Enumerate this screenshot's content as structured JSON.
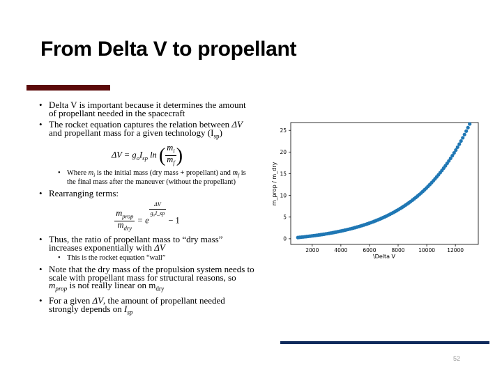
{
  "slide": {
    "title": "From Delta V to propellant",
    "page_number": "52"
  },
  "bullets": {
    "b1": "Delta V is important because it determines the amount of propellant needed in the spacecraft",
    "b2_a": "The rocket equation captures the relation between ",
    "b2_dv": "ΔV",
    "b2_b": " and propellant mass for a given technology (I",
    "b2_sub": "sp",
    "b2_c": ")",
    "eq1_lhs": "ΔV = g",
    "eq1_o": "o",
    "eq1_i": "I",
    "eq1_sp": "sp",
    "eq1_ln": " ln ",
    "eq1_mi": "m",
    "eq1_mi_sub": "i",
    "eq1_mf": "m",
    "eq1_mf_sub": "f",
    "sub1_a": "Where ",
    "sub1_mi": "m",
    "sub1_mi_sub": "i",
    "sub1_b": " is the initial mass (dry mass + propellant) and ",
    "sub1_mf": "m",
    "sub1_mf_sub": "f",
    "sub1_c": " is the final mass after the maneuver (without the propellant)",
    "b3": "Rearranging terms:",
    "eq2_num": "m",
    "eq2_num_sub": "prop",
    "eq2_den": "m",
    "eq2_den_sub": "dry",
    "eq2_eq": " = e",
    "eq2_exp_num": "ΔV",
    "eq2_exp_den": "g₀I_sp",
    "eq2_tail": " − 1",
    "b4_a": "Thus, the ratio of propellant mass to “dry mass” increases exponentially with ",
    "b4_dv": "ΔV",
    "sub2": "This is the rocket equation “wall”",
    "b5_a": "Note that the dry mass of the propulsion system needs to scale with propellant mass for structural reasons, so ",
    "b5_m": "m",
    "b5_m_sub": "prop",
    "b5_b": " is not really linear on m",
    "b5_sub": "dry",
    "b6_a": "For a given ",
    "b6_dv": "ΔV",
    "b6_b": ", the amount of propellant needed strongly depends on ",
    "b6_i": "I",
    "b6_sp": "sp"
  },
  "chart_data": {
    "type": "scatter",
    "xlabel": "\\Delta V",
    "ylabel": "m_prop / m_dry",
    "xlim": [
      500,
      13600
    ],
    "ylim": [
      -1.3,
      26.8
    ],
    "x_ticks": [
      2000,
      4000,
      6000,
      8000,
      10000,
      12000
    ],
    "y_ticks": [
      0,
      5,
      10,
      15,
      20,
      25
    ],
    "x_tick_labels": [
      "2000",
      "4000",
      "6000",
      "8000",
      "10000",
      "12000"
    ],
    "y_tick_labels": [
      "0",
      "5",
      "10",
      "15",
      "20",
      "25"
    ],
    "x_range": [
      1000,
      13000
    ],
    "n_points": 100,
    "model": "exp",
    "model_scale": 3924,
    "series_color": "#1f77b4",
    "grid": false,
    "legend": "none"
  },
  "colors": {
    "accent_bar": "#5c0a0a",
    "footer_bar": "#0f2a5c"
  }
}
